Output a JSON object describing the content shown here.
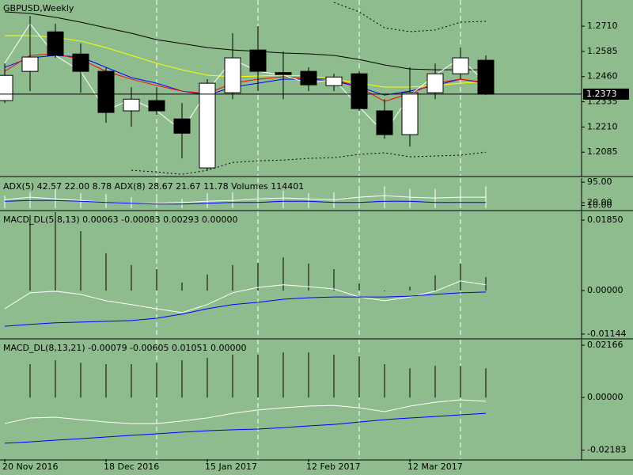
{
  "chart_data": [
    {
      "type": "candlestick",
      "title": "GBPUSD,Weekly",
      "categories": [
        "20 Nov 2016",
        null,
        null,
        null,
        "18 Dec 2016",
        null,
        null,
        null,
        "15 Jan 2017",
        null,
        null,
        null,
        "12 Feb 2017",
        null,
        null,
        null,
        "12 Mar 2017",
        null,
        null,
        null
      ],
      "open": [
        1.2341,
        1.2486,
        1.2682,
        1.2572,
        1.2486,
        1.229,
        1.2341,
        1.225,
        1.2007,
        1.238,
        1.2592,
        1.248,
        1.2486,
        1.2415,
        1.2474,
        1.229,
        1.2172,
        1.238,
        1.2474,
        1.2541
      ],
      "high": [
        1.2525,
        1.2761,
        1.2722,
        1.2624,
        1.2506,
        1.2407,
        1.2407,
        1.2329,
        1.2447,
        1.2675,
        1.271,
        1.2584,
        1.2506,
        1.2474,
        1.2486,
        1.2348,
        1.2506,
        1.2525,
        1.2604,
        1.2565
      ],
      "low": [
        1.2329,
        1.2388,
        1.2553,
        1.238,
        1.2231,
        1.2211,
        1.227,
        1.2054,
        1.1995,
        1.2348,
        1.2388,
        1.2348,
        1.2388,
        1.2388,
        1.229,
        1.2152,
        1.2113,
        1.2348,
        1.2447,
        1.2368
      ],
      "close": [
        1.2466,
        1.2557,
        1.2565,
        1.2486,
        1.2282,
        1.2348,
        1.229,
        1.2179,
        1.2427,
        1.2553,
        1.2486,
        1.247,
        1.2419,
        1.2458,
        1.2301,
        1.2172,
        1.238,
        1.2474,
        1.2553,
        1.2373
      ],
      "series": [
        {
          "color": "#000000",
          "style": "line",
          "values": [
            1.2781,
            1.2773,
            1.2754,
            1.273,
            1.2702,
            1.2675,
            1.2643,
            1.2624,
            1.2604,
            1.2592,
            1.2585,
            1.2577,
            1.2573,
            1.2565,
            1.2545,
            1.2518,
            1.2498,
            1.2494,
            1.2494,
            1.2494
          ]
        },
        {
          "color": "#ffff00",
          "style": "line",
          "values": [
            1.2663,
            1.2663,
            1.2655,
            1.2636,
            1.2604,
            1.2565,
            1.2526,
            1.2494,
            1.2467,
            1.2459,
            1.2463,
            1.2467,
            1.2463,
            1.2447,
            1.2427,
            1.2408,
            1.2408,
            1.2416,
            1.2427,
            1.2435
          ]
        },
        {
          "color": "#0000ff",
          "style": "line",
          "values": [
            1.2506,
            1.2553,
            1.2565,
            1.2557,
            1.2506,
            1.2455,
            1.2427,
            1.2388,
            1.2368,
            1.2408,
            1.2427,
            1.2447,
            1.2447,
            1.2439,
            1.2408,
            1.2368,
            1.2388,
            1.2416,
            1.2447,
            1.2427
          ]
        },
        {
          "color": "#ff0000",
          "style": "line",
          "values": [
            1.2486,
            1.2565,
            1.2573,
            1.2545,
            1.2486,
            1.2447,
            1.2416,
            1.2388,
            1.2376,
            1.2427,
            1.2447,
            1.2459,
            1.2451,
            1.2447,
            1.2408,
            1.2337,
            1.2376,
            1.2427,
            1.2447,
            1.2431
          ]
        },
        {
          "color": "#ffffff",
          "style": "line",
          "values": [
            1.2526,
            1.2722,
            1.2565,
            1.2486,
            1.229,
            1.2349,
            1.229,
            1.2192,
            1.2388,
            1.2545,
            1.2486,
            1.2467,
            1.2427,
            1.2447,
            1.2309,
            1.218,
            1.2368,
            1.2467,
            1.2553,
            1.2427
          ]
        },
        {
          "color": "#000000",
          "style": "dotted",
          "values": [
            null,
            null,
            null,
            null,
            null,
            null,
            null,
            null,
            null,
            null,
            null,
            null,
            null,
            1.2828,
            1.2781,
            1.2702,
            1.2683,
            1.2691,
            1.273,
            1.2734
          ]
        },
        {
          "color": "#000000",
          "style": "dotted",
          "values": [
            null,
            null,
            null,
            null,
            null,
            1.1995,
            1.1987,
            1.1975,
            1.1995,
            1.2034,
            1.2042,
            1.2046,
            1.2054,
            1.2058,
            1.2074,
            1.2082,
            1.2062,
            1.2066,
            1.207,
            1.2085
          ]
        }
      ],
      "ylim": [
        1.1968,
        1.284
      ],
      "yticks": [
        {
          "value": 1.271,
          "label": "1.2710"
        },
        {
          "value": 1.2585,
          "label": "1.2585"
        },
        {
          "value": 1.246,
          "label": "1.2460"
        },
        {
          "value": 1.2335,
          "label": "1.2335"
        },
        {
          "value": 1.221,
          "label": "1.2210"
        },
        {
          "value": 1.2085,
          "label": "1.2085"
        }
      ],
      "current_price": 1.2373,
      "grid": true
    },
    {
      "type": "indicator",
      "title": "ADX(5) 42.57 22.00 8.78 ADX(8) 28.67 21.67 11.78 Volumes 114401",
      "series": [
        {
          "color": "#ffffff",
          "style": "bar",
          "values": [
            46,
            58,
            70,
            55,
            52,
            40,
            34,
            34,
            55,
            58,
            70,
            64,
            55,
            58,
            70,
            80,
            70,
            70,
            77,
            80
          ]
        },
        {
          "color": "#ffffff",
          "style": "line",
          "values": [
            31,
            40,
            34,
            28,
            21,
            18,
            18,
            21,
            25,
            28,
            34,
            37,
            34,
            31,
            40,
            46,
            40,
            37,
            40,
            40
          ]
        },
        {
          "color": "#0000ff",
          "style": "line",
          "values": [
            25,
            28,
            28,
            25,
            21,
            18,
            15,
            15,
            18,
            21,
            21,
            25,
            25,
            21,
            21,
            25,
            25,
            21,
            21,
            21
          ]
        }
      ],
      "ylim": [
        -6,
        110
      ],
      "yticks": [
        {
          "value": 95,
          "label": "95.00"
        },
        {
          "value": 20,
          "label": "20.00"
        },
        {
          "value": 10,
          "label": "10.00"
        }
      ],
      "grid": true
    },
    {
      "type": "indicator",
      "title": "MACD_DL(5,8,13) 0.00063 -0.00083 0.00293 0.00000",
      "series": [
        {
          "color": "#000000",
          "style": "bar",
          "values": [
            null,
            0.0198,
            0.0206,
            0.0156,
            0.0098,
            0.0067,
            0.0056,
            0.0021,
            0.0042,
            0.0067,
            0.0073,
            0.0087,
            0.0071,
            0.0056,
            0.0019,
            -0.0002,
            0.001,
            0.004,
            0.0071,
            0.0035
          ]
        },
        {
          "color": "#ffffff",
          "style": "line",
          "values": [
            -0.0048,
            -0.0006,
            -0.0002,
            -0.001,
            -0.0027,
            -0.0037,
            -0.0048,
            -0.0058,
            -0.0037,
            -0.0006,
            0.0008,
            0.0015,
            0.001,
            0.0004,
            -0.0017,
            -0.0027,
            -0.0017,
            -0.0002,
            0.0025,
            0.0015
          ]
        },
        {
          "color": "#0000ff",
          "style": "line",
          "values": [
            -0.0094,
            -0.0089,
            -0.0085,
            -0.0083,
            -0.0081,
            -0.0079,
            -0.0073,
            -0.0062,
            -0.0048,
            -0.0037,
            -0.0031,
            -0.0023,
            -0.0019,
            -0.0017,
            -0.0017,
            -0.0017,
            -0.0015,
            -0.001,
            -0.0006,
            -0.0004
          ]
        }
      ],
      "ylim": [
        -0.0125,
        0.0208
      ],
      "yticks": [
        {
          "value": 0.0185,
          "label": "0.01850"
        },
        {
          "value": 0,
          "label": "0.00000"
        },
        {
          "value": -0.01144,
          "label": "-0.01144"
        }
      ],
      "grid": true
    },
    {
      "type": "indicator",
      "title": "MACD_DL(8,13,21) -0.00079 -0.00605 0.01051 0.00000",
      "series": [
        {
          "color": "#000000",
          "style": "bar",
          "values": [
            null,
            0.0138,
            0.0154,
            0.0144,
            0.0138,
            0.0138,
            0.0144,
            0.0154,
            0.0164,
            0.0177,
            0.0177,
            0.0187,
            0.0187,
            0.0177,
            0.0171,
            0.0138,
            0.0121,
            0.0131,
            0.0131,
            0.0121
          ]
        },
        {
          "color": "#ffffff",
          "style": "line",
          "values": [
            -0.0108,
            -0.0085,
            -0.0082,
            -0.0092,
            -0.0102,
            -0.0108,
            -0.0108,
            -0.0098,
            -0.0085,
            -0.0066,
            -0.0052,
            -0.0043,
            -0.0036,
            -0.0033,
            -0.0043,
            -0.0059,
            -0.0036,
            -0.002,
            -0.001,
            -0.0016
          ]
        },
        {
          "color": "#0000ff",
          "style": "line",
          "values": [
            -0.019,
            -0.0184,
            -0.0177,
            -0.0171,
            -0.0164,
            -0.0157,
            -0.0151,
            -0.0144,
            -0.0138,
            -0.0134,
            -0.0131,
            -0.0125,
            -0.0118,
            -0.0112,
            -0.0102,
            -0.0092,
            -0.0085,
            -0.0079,
            -0.0072,
            -0.0066
          ]
        }
      ],
      "ylim": [
        -0.0256,
        0.024
      ],
      "yticks": [
        {
          "value": 0.02166,
          "label": "0.02166"
        },
        {
          "value": 0,
          "label": "0.00000"
        },
        {
          "value": -0.02183,
          "label": "-0.02183"
        }
      ],
      "grid": true
    }
  ]
}
